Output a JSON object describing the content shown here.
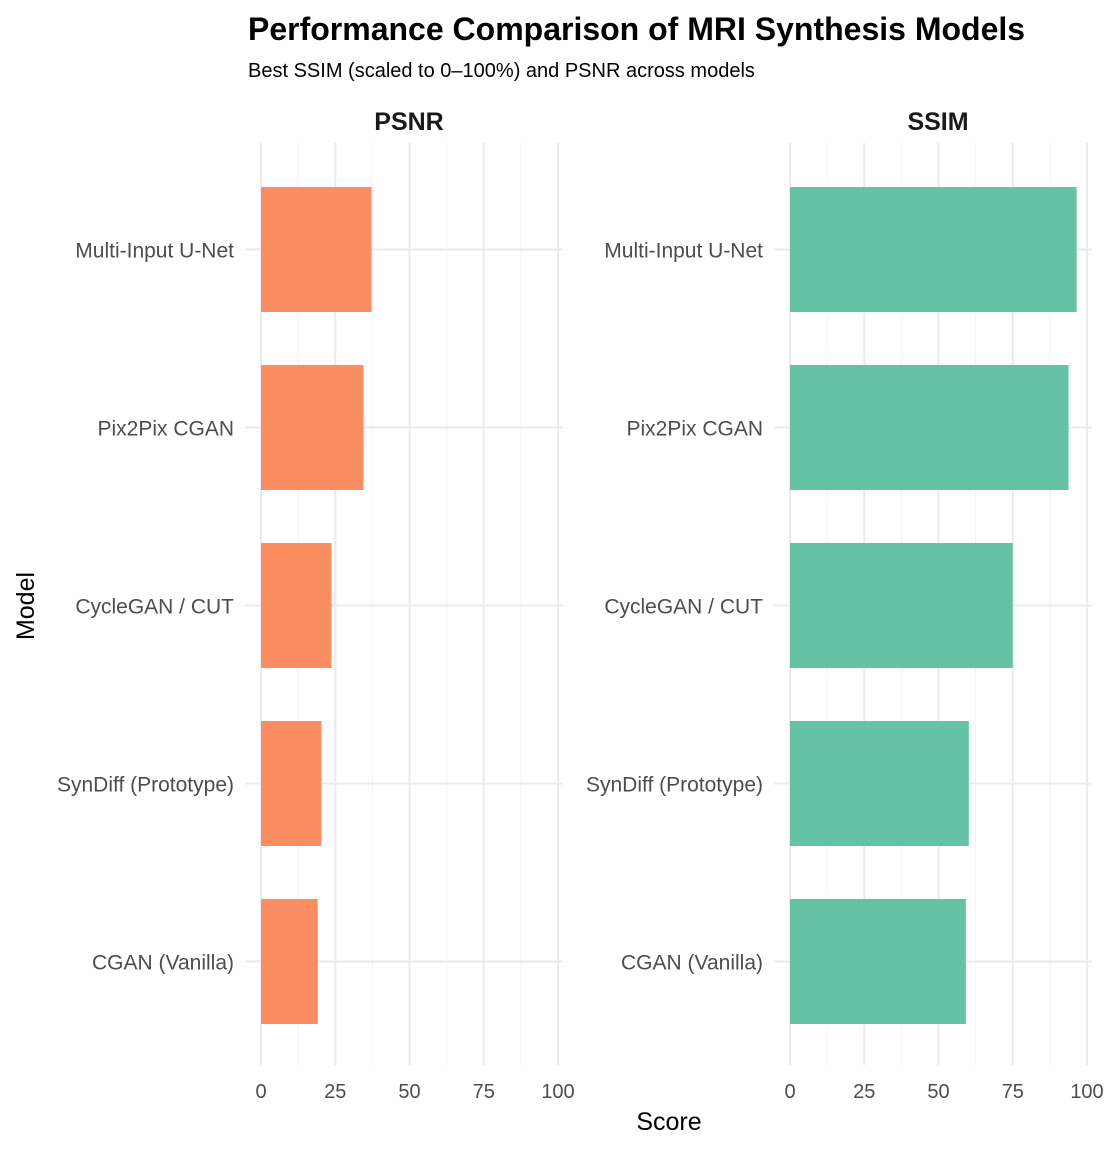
{
  "chart_data": {
    "type": "bar",
    "orientation": "horizontal",
    "title": "Performance Comparison of MRI Synthesis Models",
    "subtitle": "Best SSIM (scaled to 0–100%) and PSNR across models",
    "xlabel": "Score",
    "ylabel": "Model",
    "xlim": [
      0,
      100
    ],
    "ticks": [
      "0",
      "25",
      "50",
      "75",
      "100"
    ],
    "tick_values": [
      0,
      25,
      50,
      75,
      100
    ],
    "categories": [
      "Multi-Input U-Net",
      "Pix2Pix CGAN",
      "CycleGAN / CUT",
      "SynDiff (Prototype)",
      "CGAN (Vanilla)"
    ],
    "grid": true,
    "facets": [
      {
        "name": "PSNR",
        "color": "#FC8D62",
        "values": [
          37.2,
          34.5,
          23.7,
          20.3,
          19.1
        ]
      },
      {
        "name": "SSIM",
        "color": "#66C2A5",
        "values": [
          96.5,
          93.8,
          75.0,
          60.2,
          59.2
        ]
      }
    ]
  }
}
